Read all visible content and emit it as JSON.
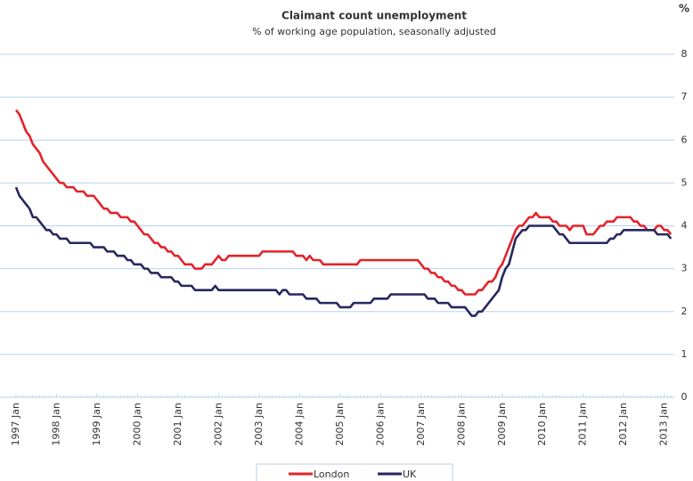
{
  "chart_data": {
    "type": "line",
    "title": "Claimant count unemployment",
    "subtitle": "% of working age population, seasonally adjusted",
    "y_label": "%",
    "categories": [
      "1997 Jan",
      null,
      null,
      null,
      null,
      null,
      null,
      null,
      null,
      null,
      null,
      null,
      "1998 Jan",
      null,
      null,
      null,
      null,
      null,
      null,
      null,
      null,
      null,
      null,
      null,
      "1999 Jan",
      null,
      null,
      null,
      null,
      null,
      null,
      null,
      null,
      null,
      null,
      null,
      "2000 Jan",
      null,
      null,
      null,
      null,
      null,
      null,
      null,
      null,
      null,
      null,
      null,
      "2001 Jan",
      null,
      null,
      null,
      null,
      null,
      null,
      null,
      null,
      null,
      null,
      null,
      "2002 Jan",
      null,
      null,
      null,
      null,
      null,
      null,
      null,
      null,
      null,
      null,
      null,
      "2003 Jan",
      null,
      null,
      null,
      null,
      null,
      null,
      null,
      null,
      null,
      null,
      null,
      "2004 Jan",
      null,
      null,
      null,
      null,
      null,
      null,
      null,
      null,
      null,
      null,
      null,
      "2005 Jan",
      null,
      null,
      null,
      null,
      null,
      null,
      null,
      null,
      null,
      null,
      null,
      "2006 Jan",
      null,
      null,
      null,
      null,
      null,
      null,
      null,
      null,
      null,
      null,
      null,
      "2007 Jan",
      null,
      null,
      null,
      null,
      null,
      null,
      null,
      null,
      null,
      null,
      null,
      "2008 Jan",
      null,
      null,
      null,
      null,
      null,
      null,
      null,
      null,
      null,
      null,
      null,
      "2009 Jan",
      null,
      null,
      null,
      null,
      null,
      null,
      null,
      null,
      null,
      null,
      null,
      "2010 Jan",
      null,
      null,
      null,
      null,
      null,
      null,
      null,
      null,
      null,
      null,
      null,
      "2011 Jan",
      null,
      null,
      null,
      null,
      null,
      null,
      null,
      null,
      null,
      null,
      null,
      "2012 Jan",
      null,
      null,
      null,
      null,
      null,
      null,
      null,
      null,
      null,
      null,
      null,
      "2013 Jan",
      null,
      null
    ],
    "series": [
      {
        "name": "London",
        "color": "#e3232b",
        "values": [
          6.7,
          6.6,
          6.4,
          6.2,
          6.1,
          5.9,
          5.8,
          5.7,
          5.5,
          5.4,
          5.3,
          5.2,
          5.1,
          5.0,
          5.0,
          4.9,
          4.9,
          4.9,
          4.8,
          4.8,
          4.8,
          4.7,
          4.7,
          4.7,
          4.6,
          4.5,
          4.4,
          4.4,
          4.3,
          4.3,
          4.3,
          4.2,
          4.2,
          4.2,
          4.1,
          4.1,
          4.0,
          3.9,
          3.8,
          3.8,
          3.7,
          3.6,
          3.6,
          3.5,
          3.5,
          3.4,
          3.4,
          3.3,
          3.3,
          3.2,
          3.1,
          3.1,
          3.1,
          3.0,
          3.0,
          3.0,
          3.1,
          3.1,
          3.1,
          3.2,
          3.3,
          3.2,
          3.2,
          3.3,
          3.3,
          3.3,
          3.3,
          3.3,
          3.3,
          3.3,
          3.3,
          3.3,
          3.3,
          3.4,
          3.4,
          3.4,
          3.4,
          3.4,
          3.4,
          3.4,
          3.4,
          3.4,
          3.4,
          3.3,
          3.3,
          3.3,
          3.2,
          3.3,
          3.2,
          3.2,
          3.2,
          3.1,
          3.1,
          3.1,
          3.1,
          3.1,
          3.1,
          3.1,
          3.1,
          3.1,
          3.1,
          3.1,
          3.2,
          3.2,
          3.2,
          3.2,
          3.2,
          3.2,
          3.2,
          3.2,
          3.2,
          3.2,
          3.2,
          3.2,
          3.2,
          3.2,
          3.2,
          3.2,
          3.2,
          3.2,
          3.1,
          3.0,
          3.0,
          2.9,
          2.9,
          2.8,
          2.8,
          2.7,
          2.7,
          2.6,
          2.6,
          2.5,
          2.5,
          2.4,
          2.4,
          2.4,
          2.4,
          2.5,
          2.5,
          2.6,
          2.7,
          2.7,
          2.8,
          3.0,
          3.1,
          3.3,
          3.5,
          3.7,
          3.9,
          4.0,
          4.0,
          4.1,
          4.2,
          4.2,
          4.3,
          4.2,
          4.2,
          4.2,
          4.2,
          4.1,
          4.1,
          4.0,
          4.0,
          4.0,
          3.9,
          4.0,
          4.0,
          4.0,
          4.0,
          3.8,
          3.8,
          3.8,
          3.9,
          4.0,
          4.0,
          4.1,
          4.1,
          4.1,
          4.2,
          4.2,
          4.2,
          4.2,
          4.2,
          4.1,
          4.1,
          4.0,
          4.0,
          3.9,
          3.9,
          3.9,
          4.0,
          4.0,
          3.9,
          3.9,
          3.8
        ]
      },
      {
        "name": "UK",
        "color": "#27275f",
        "values": [
          4.9,
          4.7,
          4.6,
          4.5,
          4.4,
          4.2,
          4.2,
          4.1,
          4.0,
          3.9,
          3.9,
          3.8,
          3.8,
          3.7,
          3.7,
          3.7,
          3.6,
          3.6,
          3.6,
          3.6,
          3.6,
          3.6,
          3.6,
          3.5,
          3.5,
          3.5,
          3.5,
          3.4,
          3.4,
          3.4,
          3.3,
          3.3,
          3.3,
          3.2,
          3.2,
          3.1,
          3.1,
          3.1,
          3.0,
          3.0,
          2.9,
          2.9,
          2.9,
          2.8,
          2.8,
          2.8,
          2.8,
          2.7,
          2.7,
          2.6,
          2.6,
          2.6,
          2.6,
          2.5,
          2.5,
          2.5,
          2.5,
          2.5,
          2.5,
          2.6,
          2.5,
          2.5,
          2.5,
          2.5,
          2.5,
          2.5,
          2.5,
          2.5,
          2.5,
          2.5,
          2.5,
          2.5,
          2.5,
          2.5,
          2.5,
          2.5,
          2.5,
          2.5,
          2.4,
          2.5,
          2.5,
          2.4,
          2.4,
          2.4,
          2.4,
          2.4,
          2.3,
          2.3,
          2.3,
          2.3,
          2.2,
          2.2,
          2.2,
          2.2,
          2.2,
          2.2,
          2.1,
          2.1,
          2.1,
          2.1,
          2.2,
          2.2,
          2.2,
          2.2,
          2.2,
          2.2,
          2.3,
          2.3,
          2.3,
          2.3,
          2.3,
          2.4,
          2.4,
          2.4,
          2.4,
          2.4,
          2.4,
          2.4,
          2.4,
          2.4,
          2.4,
          2.4,
          2.3,
          2.3,
          2.3,
          2.2,
          2.2,
          2.2,
          2.2,
          2.1,
          2.1,
          2.1,
          2.1,
          2.1,
          2.0,
          1.9,
          1.9,
          2.0,
          2.0,
          2.1,
          2.2,
          2.3,
          2.4,
          2.5,
          2.8,
          3.0,
          3.1,
          3.4,
          3.7,
          3.8,
          3.9,
          3.9,
          4.0,
          4.0,
          4.0,
          4.0,
          4.0,
          4.0,
          4.0,
          4.0,
          3.9,
          3.8,
          3.8,
          3.7,
          3.6,
          3.6,
          3.6,
          3.6,
          3.6,
          3.6,
          3.6,
          3.6,
          3.6,
          3.6,
          3.6,
          3.6,
          3.7,
          3.7,
          3.8,
          3.8,
          3.9,
          3.9,
          3.9,
          3.9,
          3.9,
          3.9,
          3.9,
          3.9,
          3.9,
          3.9,
          3.8,
          3.8,
          3.8,
          3.8,
          3.7
        ]
      }
    ],
    "ylim": [
      0,
      8
    ],
    "yticks": [
      0,
      1,
      2,
      3,
      4,
      5,
      6,
      7,
      8
    ],
    "grid": true,
    "legend": "bottom"
  }
}
